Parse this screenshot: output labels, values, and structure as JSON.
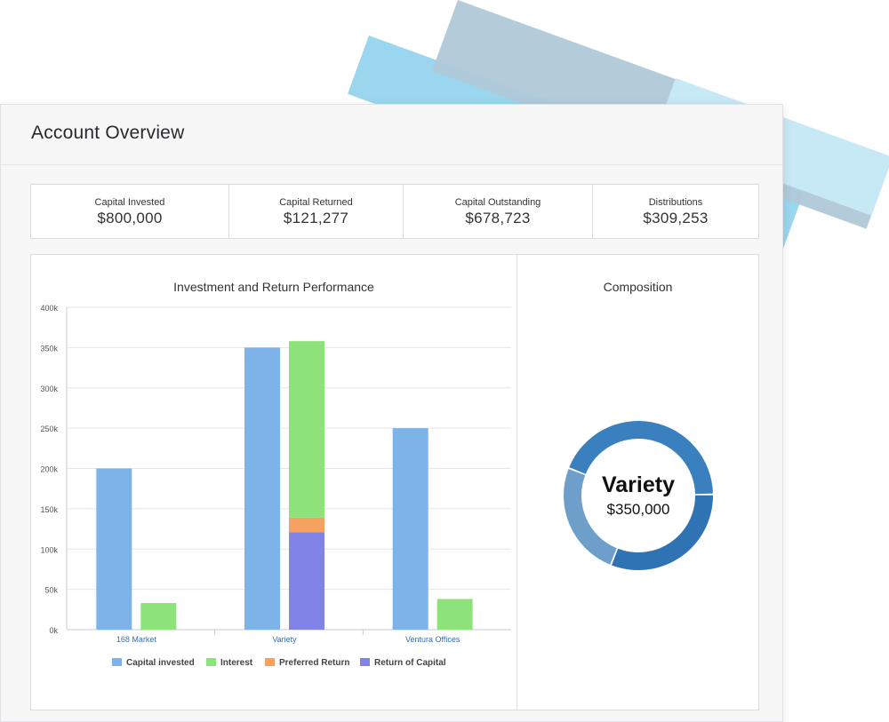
{
  "window": {
    "title": "Account Overview"
  },
  "stats": [
    {
      "label": "Capital Invested",
      "value": "$800,000"
    },
    {
      "label": "Capital Returned",
      "value": "$121,277"
    },
    {
      "label": "Capital Outstanding",
      "value": "$678,723"
    },
    {
      "label": "Distributions",
      "value": "$309,253"
    }
  ],
  "chart_panel": {
    "title": "Investment and Return Performance"
  },
  "composition_panel": {
    "title": "Composition",
    "center_label": "Variety",
    "center_value": "$350,000"
  },
  "colors": {
    "capital_invested": "#7db3e8",
    "interest": "#8de37a",
    "preferred_return": "#f5a15f",
    "return_of_capital": "#8183e6",
    "donut_dark": "#2f73b5",
    "donut_light": "#6e9fcb",
    "donut_mid": "#3a80bf"
  },
  "chart_data": {
    "type": "bar",
    "stacked": true,
    "categories": [
      "168 Market",
      "Variety",
      "Ventura Offices"
    ],
    "ylim": [
      0,
      400000
    ],
    "yticks": [
      "0k",
      "50k",
      "100k",
      "150k",
      "200k",
      "250k",
      "300k",
      "350k",
      "400k"
    ],
    "grid": true,
    "legend_position": "bottom",
    "series": [
      {
        "name": "Capital invested",
        "stack": "invested",
        "values": [
          200000,
          350000,
          250000
        ]
      },
      {
        "name": "Return of Capital",
        "stack": "returns",
        "values": [
          0,
          121000,
          0
        ]
      },
      {
        "name": "Preferred Return",
        "stack": "returns",
        "values": [
          0,
          18000,
          0
        ]
      },
      {
        "name": "Interest",
        "stack": "returns",
        "values": [
          33000,
          219000,
          38000
        ]
      }
    ],
    "legend_order": [
      "Capital invested",
      "Interest",
      "Preferred Return",
      "Return of Capital"
    ]
  },
  "donut_data": {
    "type": "pie",
    "segments": [
      {
        "label": "Variety",
        "value": 350000
      },
      {
        "label": "Ventura Offices",
        "value": 250000
      },
      {
        "label": "168 Market",
        "value": 200000
      }
    ]
  }
}
